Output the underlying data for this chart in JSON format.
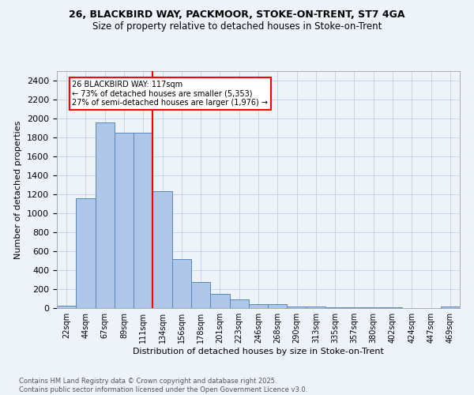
{
  "title_line1": "26, BLACKBIRD WAY, PACKMOOR, STOKE-ON-TRENT, ST7 4GA",
  "title_line2": "Size of property relative to detached houses in Stoke-on-Trent",
  "xlabel": "Distribution of detached houses by size in Stoke-on-Trent",
  "ylabel": "Number of detached properties",
  "bar_labels": [
    "22sqm",
    "44sqm",
    "67sqm",
    "89sqm",
    "111sqm",
    "134sqm",
    "156sqm",
    "178sqm",
    "201sqm",
    "223sqm",
    "246sqm",
    "268sqm",
    "290sqm",
    "313sqm",
    "335sqm",
    "357sqm",
    "380sqm",
    "402sqm",
    "424sqm",
    "447sqm",
    "469sqm"
  ],
  "bar_values": [
    25,
    1155,
    1960,
    1850,
    1850,
    1230,
    515,
    275,
    150,
    90,
    45,
    45,
    20,
    15,
    10,
    5,
    5,
    5,
    3,
    2,
    15
  ],
  "bar_color": "#aec6e8",
  "bar_edge_color": "#5588bb",
  "property_line_x": 4.5,
  "annotation_text": "26 BLACKBIRD WAY: 117sqm\n← 73% of detached houses are smaller (5,353)\n27% of semi-detached houses are larger (1,976) →",
  "annotation_box_color": "white",
  "annotation_box_edge_color": "red",
  "vline_color": "red",
  "ylim": [
    0,
    2500
  ],
  "yticks": [
    0,
    200,
    400,
    600,
    800,
    1000,
    1200,
    1400,
    1600,
    1800,
    2000,
    2200,
    2400
  ],
  "footer_line1": "Contains HM Land Registry data © Crown copyright and database right 2025.",
  "footer_line2": "Contains public sector information licensed under the Open Government Licence v3.0.",
  "bg_color": "#eef3fa",
  "grid_color": "#c8d4e8"
}
